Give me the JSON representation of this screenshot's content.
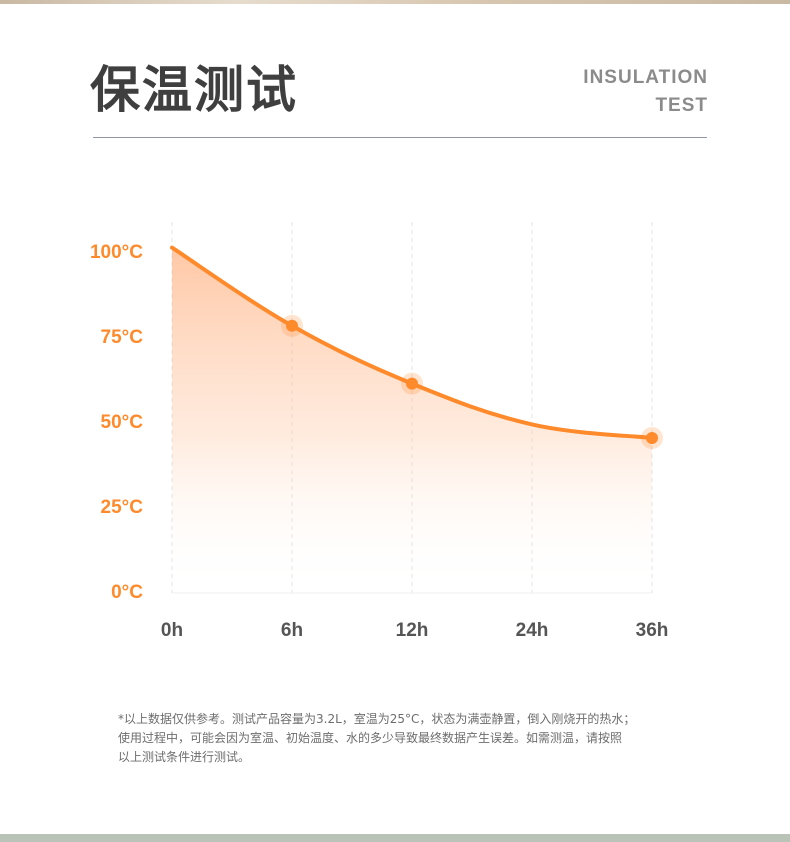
{
  "header": {
    "title": "保温测试",
    "title_en_line1": "INSULATION",
    "title_en_line2": "TEST"
  },
  "colors": {
    "accent": "#ff8a2b",
    "tick_y": "#ff8a2b",
    "tick_x": "#555555",
    "title": "#3f3f3f"
  },
  "chart_data": {
    "type": "line",
    "categories": [
      "0h",
      "6h",
      "12h",
      "24h",
      "36h"
    ],
    "series": [
      {
        "values": [
          101,
          78,
          61,
          49,
          45
        ],
        "markers": [
          false,
          true,
          true,
          false,
          true
        ]
      }
    ],
    "y_ticks": [
      0,
      25,
      50,
      75,
      100
    ],
    "y_tick_labels": [
      "0°C",
      "25°C",
      "50°C",
      "75°C",
      "100°C"
    ],
    "ylim": [
      0,
      100
    ],
    "xlabel": "",
    "ylabel": "",
    "grid": "vertical-dashed",
    "fill": "area-gradient"
  },
  "footnote": {
    "line1": "*以上数据仅供参考。测试产品容量为3.2L，室温为25°C，状态为满壶静置，倒入刚烧开的热水；",
    "line2": "使用过程中，可能会因为室温、初始温度、水的多少导致最终数据产生误差。如需测温，请按照",
    "line3": "以上测试条件进行测试。"
  }
}
